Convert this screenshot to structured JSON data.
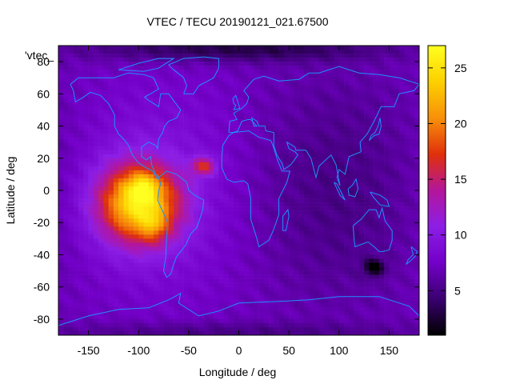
{
  "chart_data": {
    "type": "heatmap",
    "title": "VTEC / TECU 20190121_021.67500",
    "xlabel": "Longitude / deg",
    "ylabel": "Latitude / deg",
    "series_label": "'vtec_",
    "xlim": [
      -180,
      180
    ],
    "ylim": [
      -90,
      90
    ],
    "x_ticks": [
      -150,
      -100,
      -50,
      0,
      50,
      100,
      150
    ],
    "y_ticks": [
      80,
      60,
      40,
      20,
      0,
      -20,
      -40,
      -60,
      -80
    ],
    "colorbar": {
      "range": [
        1,
        27
      ],
      "ticks": [
        5,
        10,
        15,
        20,
        25
      ],
      "palette": [
        "#000000",
        "#3a0070",
        "#7300c8",
        "#8c1ee6",
        "#b4169b",
        "#e0300a",
        "#f8900a",
        "#fcd000",
        "#ffff20"
      ]
    },
    "features": [
      {
        "name": "equatorial anomaly peak",
        "lon": -95,
        "lat": 0,
        "vtec": 27
      },
      {
        "name": "secondary peak",
        "lon": -88,
        "lat": -20,
        "vtec": 22
      },
      {
        "name": "atlantic hotspot",
        "lon": -35,
        "lat": 15,
        "vtec": 16
      },
      {
        "name": "background",
        "vtec": 7
      },
      {
        "name": "southern low",
        "lon": 135,
        "lat": -48,
        "vtec": 1
      }
    ],
    "overlay": "coastlines",
    "overlay_color": "#1e90ff"
  }
}
